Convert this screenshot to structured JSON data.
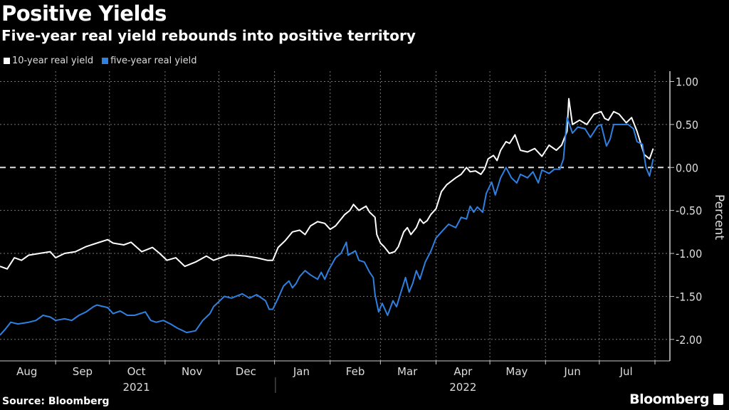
{
  "chart_data": {
    "type": "line",
    "title": "Positive Yields",
    "subtitle": "Five-year real yield rebounds into positive territory",
    "xlabel": "",
    "ylabel": "Percent",
    "x_unit": "days since 2021-08-01",
    "xlim": [
      0,
      365
    ],
    "ylim": [
      -2.25,
      1.12
    ],
    "yticks": [
      1.0,
      0.5,
      0.0,
      -0.5,
      -1.0,
      -1.5,
      -2.0
    ],
    "ytick_labels": [
      "1.00",
      "0.50",
      "0.00",
      "-0.50",
      "-1.00",
      "-1.50",
      "-2.00"
    ],
    "month_ticks": [
      31,
      61,
      92,
      122,
      153,
      184,
      212,
      243,
      273,
      304,
      334,
      365
    ],
    "month_labels": [
      {
        "label": "Aug",
        "day": 15
      },
      {
        "label": "Sep",
        "day": 46
      },
      {
        "label": "Oct",
        "day": 76
      },
      {
        "label": "Nov",
        "day": 107
      },
      {
        "label": "Dec",
        "day": 137
      },
      {
        "label": "Jan",
        "day": 168
      },
      {
        "label": "Feb",
        "day": 198
      },
      {
        "label": "Mar",
        "day": 227
      },
      {
        "label": "Apr",
        "day": 258
      },
      {
        "label": "May",
        "day": 288
      },
      {
        "label": "Jun",
        "day": 319
      },
      {
        "label": "Jul",
        "day": 349
      }
    ],
    "year_labels": [
      {
        "label": "2021",
        "day": 76
      },
      {
        "label": "2022",
        "day": 258
      }
    ],
    "grid": true,
    "legend_position": "top-left",
    "series": [
      {
        "name": "10-year real yield",
        "color": "#ffffff",
        "points": [
          [
            0,
            -1.15
          ],
          [
            4,
            -1.18
          ],
          [
            8,
            -1.05
          ],
          [
            12,
            -1.08
          ],
          [
            16,
            -1.02
          ],
          [
            22,
            -1.0
          ],
          [
            28,
            -0.98
          ],
          [
            31,
            -1.05
          ],
          [
            36,
            -1.0
          ],
          [
            42,
            -0.98
          ],
          [
            48,
            -0.92
          ],
          [
            54,
            -0.88
          ],
          [
            60,
            -0.84
          ],
          [
            63,
            -0.88
          ],
          [
            69,
            -0.9
          ],
          [
            73,
            -0.87
          ],
          [
            79,
            -0.98
          ],
          [
            85,
            -0.93
          ],
          [
            89,
            -1.0
          ],
          [
            93,
            -1.08
          ],
          [
            98,
            -1.05
          ],
          [
            103,
            -1.15
          ],
          [
            109,
            -1.1
          ],
          [
            115,
            -1.03
          ],
          [
            119,
            -1.08
          ],
          [
            123,
            -1.05
          ],
          [
            127,
            -1.02
          ],
          [
            131,
            -1.02
          ],
          [
            137,
            -1.03
          ],
          [
            143,
            -1.05
          ],
          [
            149,
            -1.08
          ],
          [
            152,
            -1.08
          ],
          [
            155,
            -0.93
          ],
          [
            159,
            -0.85
          ],
          [
            163,
            -0.75
          ],
          [
            167,
            -0.73
          ],
          [
            170,
            -0.78
          ],
          [
            173,
            -0.68
          ],
          [
            177,
            -0.63
          ],
          [
            181,
            -0.65
          ],
          [
            184,
            -0.72
          ],
          [
            187,
            -0.68
          ],
          [
            192,
            -0.55
          ],
          [
            195,
            -0.5
          ],
          [
            197,
            -0.43
          ],
          [
            200,
            -0.5
          ],
          [
            204,
            -0.45
          ],
          [
            206,
            -0.52
          ],
          [
            209,
            -0.58
          ],
          [
            210,
            -0.78
          ],
          [
            212,
            -0.88
          ],
          [
            214,
            -0.92
          ],
          [
            217,
            -1.0
          ],
          [
            220,
            -0.98
          ],
          [
            222,
            -0.92
          ],
          [
            225,
            -0.75
          ],
          [
            227,
            -0.7
          ],
          [
            229,
            -0.78
          ],
          [
            232,
            -0.7
          ],
          [
            234,
            -0.6
          ],
          [
            236,
            -0.65
          ],
          [
            238,
            -0.62
          ],
          [
            240,
            -0.55
          ],
          [
            243,
            -0.48
          ],
          [
            246,
            -0.28
          ],
          [
            249,
            -0.2
          ],
          [
            254,
            -0.12
          ],
          [
            257,
            -0.08
          ],
          [
            260,
            0.0
          ],
          [
            262,
            -0.05
          ],
          [
            265,
            -0.04
          ],
          [
            268,
            -0.08
          ],
          [
            270,
            -0.02
          ],
          [
            272,
            0.1
          ],
          [
            275,
            0.14
          ],
          [
            277,
            0.08
          ],
          [
            279,
            0.2
          ],
          [
            282,
            0.3
          ],
          [
            284,
            0.28
          ],
          [
            287,
            0.38
          ],
          [
            290,
            0.2
          ],
          [
            294,
            0.18
          ],
          [
            298,
            0.22
          ],
          [
            302,
            0.13
          ],
          [
            306,
            0.26
          ],
          [
            310,
            0.2
          ],
          [
            313,
            0.26
          ],
          [
            316,
            0.42
          ],
          [
            317,
            0.8
          ],
          [
            319,
            0.5
          ],
          [
            323,
            0.55
          ],
          [
            327,
            0.5
          ],
          [
            331,
            0.62
          ],
          [
            335,
            0.65
          ],
          [
            337,
            0.57
          ],
          [
            339,
            0.55
          ],
          [
            342,
            0.65
          ],
          [
            345,
            0.62
          ],
          [
            349,
            0.52
          ],
          [
            352,
            0.58
          ],
          [
            355,
            0.42
          ],
          [
            359,
            0.15
          ],
          [
            362,
            0.1
          ],
          [
            364,
            0.22
          ]
        ]
      },
      {
        "name": "five-year real yield",
        "color": "#2f80e0",
        "points": [
          [
            0,
            -1.95
          ],
          [
            3,
            -1.88
          ],
          [
            6,
            -1.8
          ],
          [
            10,
            -1.82
          ],
          [
            16,
            -1.8
          ],
          [
            20,
            -1.78
          ],
          [
            24,
            -1.72
          ],
          [
            28,
            -1.74
          ],
          [
            31,
            -1.78
          ],
          [
            36,
            -1.76
          ],
          [
            40,
            -1.78
          ],
          [
            44,
            -1.72
          ],
          [
            48,
            -1.68
          ],
          [
            52,
            -1.62
          ],
          [
            54,
            -1.6
          ],
          [
            60,
            -1.63
          ],
          [
            63,
            -1.7
          ],
          [
            67,
            -1.67
          ],
          [
            71,
            -1.72
          ],
          [
            75,
            -1.72
          ],
          [
            81,
            -1.68
          ],
          [
            84,
            -1.78
          ],
          [
            87,
            -1.8
          ],
          [
            91,
            -1.78
          ],
          [
            95,
            -1.82
          ],
          [
            99,
            -1.87
          ],
          [
            104,
            -1.92
          ],
          [
            109,
            -1.9
          ],
          [
            113,
            -1.78
          ],
          [
            117,
            -1.7
          ],
          [
            119,
            -1.62
          ],
          [
            121,
            -1.58
          ],
          [
            125,
            -1.5
          ],
          [
            129,
            -1.52
          ],
          [
            135,
            -1.47
          ],
          [
            139,
            -1.52
          ],
          [
            143,
            -1.48
          ],
          [
            148,
            -1.55
          ],
          [
            150,
            -1.65
          ],
          [
            152,
            -1.65
          ],
          [
            155,
            -1.52
          ],
          [
            158,
            -1.38
          ],
          [
            161,
            -1.32
          ],
          [
            163,
            -1.4
          ],
          [
            165,
            -1.35
          ],
          [
            167,
            -1.27
          ],
          [
            170,
            -1.2
          ],
          [
            173,
            -1.25
          ],
          [
            177,
            -1.3
          ],
          [
            179,
            -1.22
          ],
          [
            181,
            -1.3
          ],
          [
            183,
            -1.2
          ],
          [
            187,
            -1.05
          ],
          [
            190,
            -1.0
          ],
          [
            193,
            -0.87
          ],
          [
            194,
            -1.02
          ],
          [
            198,
            -0.97
          ],
          [
            200,
            -1.08
          ],
          [
            203,
            -1.1
          ],
          [
            206,
            -1.22
          ],
          [
            208,
            -1.28
          ],
          [
            209,
            -1.48
          ],
          [
            211,
            -1.68
          ],
          [
            213,
            -1.58
          ],
          [
            216,
            -1.72
          ],
          [
            219,
            -1.55
          ],
          [
            221,
            -1.62
          ],
          [
            223,
            -1.48
          ],
          [
            226,
            -1.28
          ],
          [
            228,
            -1.45
          ],
          [
            230,
            -1.35
          ],
          [
            232,
            -1.2
          ],
          [
            234,
            -1.3
          ],
          [
            237,
            -1.1
          ],
          [
            240,
            -0.98
          ],
          [
            243,
            -0.82
          ],
          [
            246,
            -0.75
          ],
          [
            250,
            -0.66
          ],
          [
            254,
            -0.7
          ],
          [
            257,
            -0.58
          ],
          [
            260,
            -0.6
          ],
          [
            262,
            -0.45
          ],
          [
            264,
            -0.52
          ],
          [
            266,
            -0.46
          ],
          [
            269,
            -0.52
          ],
          [
            271,
            -0.3
          ],
          [
            274,
            -0.17
          ],
          [
            276,
            -0.32
          ],
          [
            279,
            -0.12
          ],
          [
            282,
            0.0
          ],
          [
            285,
            -0.12
          ],
          [
            288,
            -0.18
          ],
          [
            290,
            -0.08
          ],
          [
            294,
            -0.12
          ],
          [
            297,
            -0.05
          ],
          [
            300,
            -0.18
          ],
          [
            302,
            -0.03
          ],
          [
            306,
            -0.07
          ],
          [
            309,
            -0.02
          ],
          [
            312,
            -0.02
          ],
          [
            314,
            0.1
          ],
          [
            316,
            0.58
          ],
          [
            319,
            0.4
          ],
          [
            322,
            0.47
          ],
          [
            326,
            0.45
          ],
          [
            329,
            0.35
          ],
          [
            333,
            0.48
          ],
          [
            335,
            0.5
          ],
          [
            338,
            0.25
          ],
          [
            340,
            0.33
          ],
          [
            342,
            0.5
          ],
          [
            346,
            0.5
          ],
          [
            350,
            0.5
          ],
          [
            353,
            0.45
          ],
          [
            355,
            0.3
          ],
          [
            358,
            0.27
          ],
          [
            360,
            0.0
          ],
          [
            362,
            -0.1
          ],
          [
            364,
            0.1
          ]
        ]
      }
    ]
  },
  "footer": {
    "source": "Source: Bloomberg",
    "brand": "Bloomberg"
  }
}
